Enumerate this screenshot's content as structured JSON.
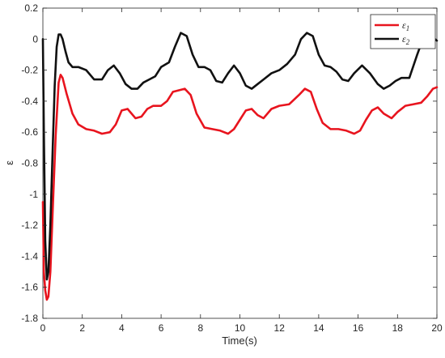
{
  "chart_data": {
    "type": "line",
    "xlabel": "Time(s)",
    "ylabel": "ε",
    "xlim": [
      0,
      20
    ],
    "ylim": [
      -1.8,
      0.2
    ],
    "x_ticks": [
      0,
      2,
      4,
      6,
      8,
      10,
      12,
      14,
      16,
      18,
      20
    ],
    "x_tick_labels": [
      "0",
      "2",
      "4",
      "6",
      "8",
      "10",
      "12",
      "14",
      "16",
      "18",
      "20"
    ],
    "y_ticks": [
      -1.8,
      -1.6,
      -1.4,
      -1.2,
      -1,
      -0.8,
      -0.6,
      -0.4,
      -0.2,
      0,
      0.2
    ],
    "y_tick_labels": [
      "-1.8",
      "-1.6",
      "-1.4",
      "-1.2",
      "-1",
      "-0.8",
      "-0.6",
      "-0.4",
      "-0.2",
      "0",
      "0.2"
    ],
    "grid": false,
    "legend_position": "top-right",
    "series": [
      {
        "name": "ε1",
        "legend_base": "ε",
        "legend_sub": "1",
        "color": "#e8141e",
        "x": [
          0,
          0.05,
          0.12,
          0.2,
          0.28,
          0.38,
          0.5,
          0.65,
          0.8,
          0.9,
          1.0,
          1.2,
          1.5,
          1.8,
          2.2,
          2.6,
          3.0,
          3.4,
          3.7,
          4.0,
          4.3,
          4.7,
          5.0,
          5.3,
          5.6,
          6.0,
          6.3,
          6.6,
          6.9,
          7.2,
          7.5,
          7.8,
          8.2,
          8.6,
          9.0,
          9.4,
          9.7,
          10.0,
          10.3,
          10.6,
          10.9,
          11.2,
          11.6,
          12.0,
          12.5,
          13.0,
          13.3,
          13.6,
          13.9,
          14.2,
          14.6,
          15.0,
          15.4,
          15.8,
          16.1,
          16.4,
          16.7,
          17.0,
          17.3,
          17.7,
          18.0,
          18.4,
          18.8,
          19.2,
          19.5,
          19.8,
          20.0
        ],
        "y": [
          -1.05,
          -1.5,
          -1.62,
          -1.68,
          -1.66,
          -1.5,
          -1.1,
          -0.62,
          -0.28,
          -0.23,
          -0.25,
          -0.35,
          -0.48,
          -0.55,
          -0.58,
          -0.59,
          -0.61,
          -0.6,
          -0.55,
          -0.46,
          -0.45,
          -0.51,
          -0.5,
          -0.45,
          -0.43,
          -0.43,
          -0.4,
          -0.34,
          -0.33,
          -0.32,
          -0.36,
          -0.48,
          -0.57,
          -0.58,
          -0.59,
          -0.61,
          -0.58,
          -0.52,
          -0.46,
          -0.45,
          -0.49,
          -0.51,
          -0.45,
          -0.43,
          -0.42,
          -0.36,
          -0.32,
          -0.34,
          -0.45,
          -0.54,
          -0.58,
          -0.58,
          -0.59,
          -0.61,
          -0.59,
          -0.52,
          -0.46,
          -0.44,
          -0.48,
          -0.51,
          -0.47,
          -0.43,
          -0.42,
          -0.41,
          -0.37,
          -0.32,
          -0.31
        ]
      },
      {
        "name": "ε2",
        "legend_base": "ε",
        "legend_sub": "2",
        "color": "#111111",
        "x": [
          0,
          0.05,
          0.12,
          0.2,
          0.28,
          0.38,
          0.5,
          0.6,
          0.7,
          0.8,
          0.9,
          1.0,
          1.15,
          1.3,
          1.5,
          1.8,
          2.2,
          2.6,
          3.0,
          3.3,
          3.6,
          3.9,
          4.2,
          4.5,
          4.8,
          5.1,
          5.4,
          5.7,
          6.0,
          6.4,
          6.7,
          7.0,
          7.3,
          7.6,
          7.9,
          8.2,
          8.5,
          8.8,
          9.1,
          9.4,
          9.7,
          10.0,
          10.3,
          10.6,
          10.9,
          11.2,
          11.6,
          12.0,
          12.4,
          12.8,
          13.1,
          13.4,
          13.7,
          14.0,
          14.3,
          14.6,
          14.9,
          15.2,
          15.5,
          15.8,
          16.2,
          16.6,
          17.0,
          17.3,
          17.6,
          17.9,
          18.2,
          18.6,
          19.0,
          19.4,
          19.7,
          20.0
        ],
        "y": [
          0.0,
          -0.6,
          -1.3,
          -1.55,
          -1.5,
          -1.2,
          -0.7,
          -0.3,
          -0.05,
          0.03,
          0.03,
          0.0,
          -0.08,
          -0.15,
          -0.18,
          -0.18,
          -0.2,
          -0.26,
          -0.26,
          -0.2,
          -0.17,
          -0.22,
          -0.29,
          -0.32,
          -0.32,
          -0.28,
          -0.26,
          -0.24,
          -0.18,
          -0.15,
          -0.05,
          0.04,
          0.02,
          -0.1,
          -0.18,
          -0.18,
          -0.2,
          -0.27,
          -0.28,
          -0.22,
          -0.17,
          -0.22,
          -0.3,
          -0.32,
          -0.29,
          -0.26,
          -0.22,
          -0.2,
          -0.16,
          -0.1,
          0.0,
          0.04,
          0.02,
          -0.1,
          -0.17,
          -0.18,
          -0.21,
          -0.26,
          -0.27,
          -0.22,
          -0.17,
          -0.22,
          -0.29,
          -0.32,
          -0.3,
          -0.27,
          -0.25,
          -0.25,
          -0.1,
          0.04,
          0.02,
          -0.01
        ]
      }
    ]
  }
}
